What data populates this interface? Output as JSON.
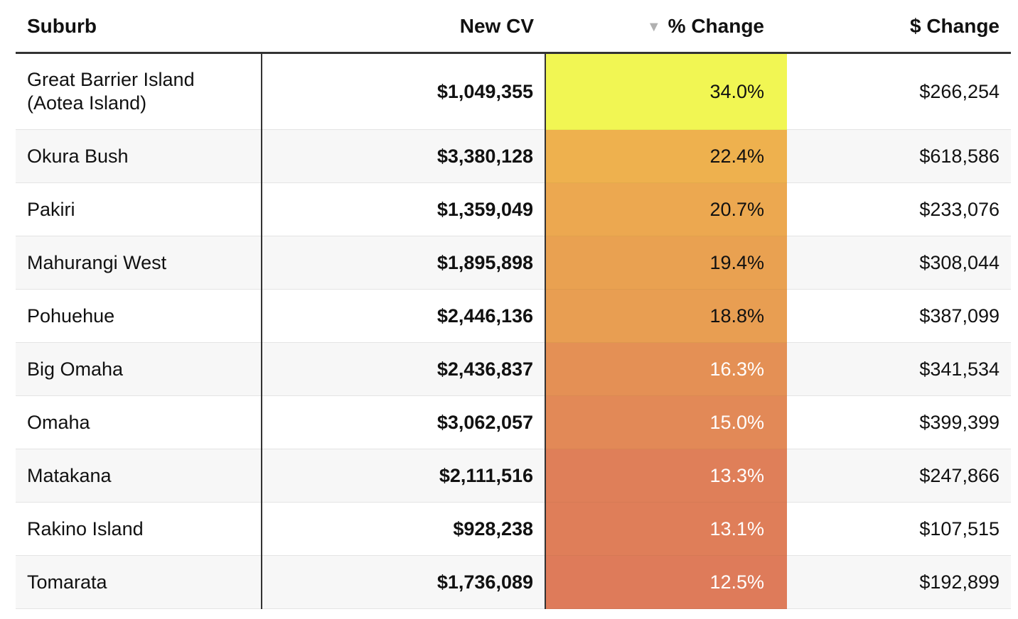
{
  "chart_data": {
    "type": "table",
    "columns": [
      "Suburb",
      "New CV",
      "% Change",
      "$ Change"
    ],
    "sort": {
      "column": "% Change",
      "direction": "descending"
    },
    "rows": [
      {
        "suburb": "Great Barrier Island (Aotea Island)",
        "new_cv": "$1,049,355",
        "pct_change": "34.0%",
        "pct_value": 34.0,
        "dollar_change": "$266,254"
      },
      {
        "suburb": "Okura Bush",
        "new_cv": "$3,380,128",
        "pct_change": "22.4%",
        "pct_value": 22.4,
        "dollar_change": "$618,586"
      },
      {
        "suburb": "Pakiri",
        "new_cv": "$1,359,049",
        "pct_change": "20.7%",
        "pct_value": 20.7,
        "dollar_change": "$233,076"
      },
      {
        "suburb": "Mahurangi West",
        "new_cv": "$1,895,898",
        "pct_change": "19.4%",
        "pct_value": 19.4,
        "dollar_change": "$308,044"
      },
      {
        "suburb": "Pohuehue",
        "new_cv": "$2,446,136",
        "pct_change": "18.8%",
        "pct_value": 18.8,
        "dollar_change": "$387,099"
      },
      {
        "suburb": "Big Omaha",
        "new_cv": "$2,436,837",
        "pct_change": "16.3%",
        "pct_value": 16.3,
        "dollar_change": "$341,534"
      },
      {
        "suburb": "Omaha",
        "new_cv": "$3,062,057",
        "pct_change": "15.0%",
        "pct_value": 15.0,
        "dollar_change": "$399,399"
      },
      {
        "suburb": "Matakana",
        "new_cv": "$2,111,516",
        "pct_change": "13.3%",
        "pct_value": 13.3,
        "dollar_change": "$247,866"
      },
      {
        "suburb": "Rakino Island",
        "new_cv": "$928,238",
        "pct_change": "13.1%",
        "pct_value": 13.1,
        "dollar_change": "$107,515"
      },
      {
        "suburb": "Tomarata",
        "new_cv": "$1,736,089",
        "pct_change": "12.5%",
        "pct_value": 12.5,
        "dollar_change": "$192,899"
      }
    ],
    "color_scale": {
      "low": "#de7b5a",
      "mid": "#eeb04e",
      "high": "#f1f653"
    }
  },
  "icons": {
    "sort": "sort-descending-icon"
  }
}
